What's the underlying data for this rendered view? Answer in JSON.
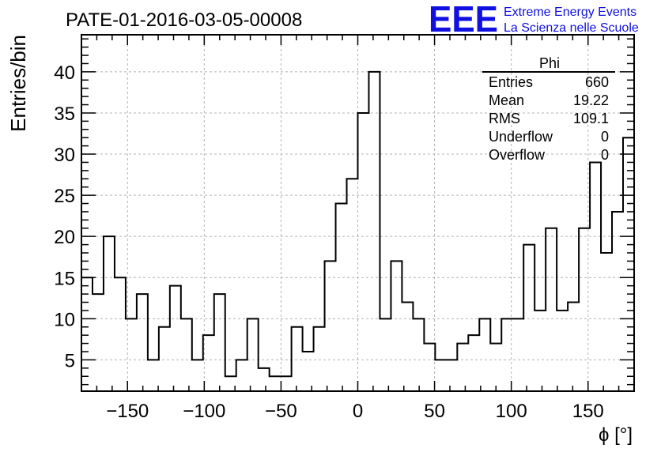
{
  "chart_data": {
    "type": "bar",
    "title": "PATE-01-2016-03-05-00008",
    "xlabel": "ϕ [°]",
    "ylabel": "Entries/bin",
    "xlim": [
      -180,
      180
    ],
    "ylim": [
      1.2,
      44.5
    ],
    "grid": true,
    "x_ticks": [
      -150,
      -100,
      -50,
      0,
      50,
      100,
      150
    ],
    "x_tick_labels": [
      "−150",
      "−100",
      "−50",
      "0",
      "50",
      "100",
      "150"
    ],
    "y_ticks": [
      5,
      10,
      15,
      20,
      25,
      30,
      35,
      40
    ],
    "y_tick_labels": [
      "5",
      "10",
      "15",
      "20",
      "25",
      "30",
      "35",
      "40"
    ],
    "bin_edges_start": -180,
    "bin_width": 7.2,
    "values": [
      15,
      13,
      20,
      15,
      10,
      13,
      5,
      9,
      14,
      10,
      5,
      8,
      13,
      3,
      5,
      10,
      4,
      3,
      3,
      9,
      6,
      9,
      17,
      24,
      27,
      35,
      40,
      10,
      17,
      12,
      10,
      7,
      5,
      5,
      7,
      8,
      10,
      7,
      10,
      10,
      19,
      11,
      21,
      11,
      12,
      21,
      29,
      18,
      23,
      32
    ],
    "color": "#000000"
  },
  "stats_box": {
    "title": "Phi",
    "rows": [
      {
        "label": "Entries",
        "value": "660"
      },
      {
        "label": "Mean",
        "value": "19.22"
      },
      {
        "label": "RMS",
        "value": "109.1"
      },
      {
        "label": "Underflow",
        "value": "0"
      },
      {
        "label": "Overflow",
        "value": "0"
      }
    ]
  },
  "logo": {
    "mark": "EEE",
    "line1": "Extreme Energy Events",
    "line2": "La Scienza nelle Scuole",
    "color": "#1010e0"
  }
}
